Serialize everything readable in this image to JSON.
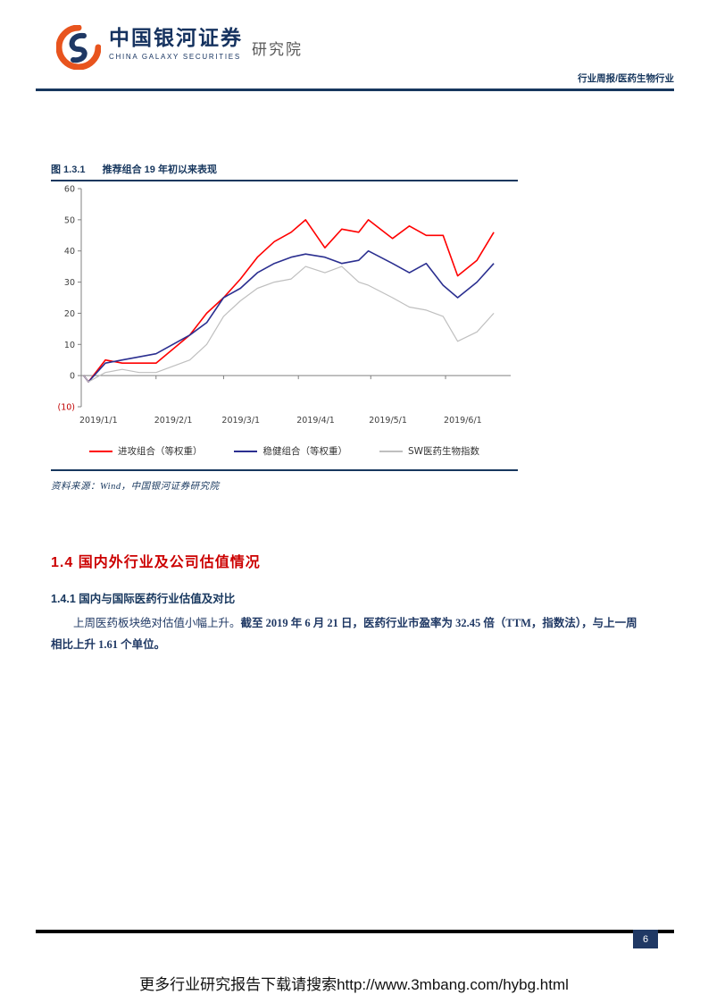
{
  "header": {
    "brand_cn": "中国银河证券",
    "brand_en": "CHINA GALAXY SECURITIES",
    "division": "研究院",
    "report_tag": "行业周报/医药生物行业"
  },
  "figure": {
    "caption_label": "图 1.3.1",
    "caption_title": "推荐组合 19 年初以来表现",
    "source": "资料来源：Wind，中国银河证券研究院"
  },
  "sections": {
    "h1": "1.4 国内外行业及公司估值情况",
    "h2": "1.4.1 国内与国际医药行业估值及对比",
    "para_normal": "上周医药板块绝对估值小幅上升。",
    "para_bold": "截至 2019 年 6 月 21 日，医药行业市盈率为 32.45 倍（TTM，指数法），与上一周相比上升 1.61 个单位。"
  },
  "footer": {
    "page_number": "6",
    "download_text": "更多行业研究报告下载请搜索http://www.3mbang.com/hybg.html"
  },
  "chart_data": {
    "type": "line",
    "title": "推荐组合 19 年初以来表现",
    "xlabel": "",
    "ylabel": "",
    "xlim": [
      "2019/1/1",
      "2019/6/28"
    ],
    "ylim": [
      -10,
      60
    ],
    "grid": false,
    "legend_position": "bottom",
    "x_ticks": [
      "2019/1/1",
      "2019/2/1",
      "2019/3/1",
      "2019/4/1",
      "2019/5/1",
      "2019/6/1"
    ],
    "y_ticks": [
      {
        "v": 60,
        "label": "60"
      },
      {
        "v": 50,
        "label": "50"
      },
      {
        "v": 40,
        "label": "40"
      },
      {
        "v": 30,
        "label": "30"
      },
      {
        "v": 20,
        "label": "20"
      },
      {
        "v": 10,
        "label": "10"
      },
      {
        "v": 0,
        "label": "0"
      },
      {
        "v": -10,
        "label": "(10)"
      }
    ],
    "x": [
      "2019/1/2",
      "2019/1/4",
      "2019/1/11",
      "2019/1/18",
      "2019/1/25",
      "2019/2/1",
      "2019/2/15",
      "2019/2/22",
      "2019/3/1",
      "2019/3/8",
      "2019/3/15",
      "2019/3/22",
      "2019/3/29",
      "2019/4/4",
      "2019/4/12",
      "2019/4/19",
      "2019/4/26",
      "2019/4/30",
      "2019/5/10",
      "2019/5/17",
      "2019/5/24",
      "2019/5/31",
      "2019/6/6",
      "2019/6/14",
      "2019/6/21"
    ],
    "series": [
      {
        "name": "进攻组合（等权重）",
        "color": "#FF0000",
        "values": [
          0,
          -2,
          5,
          4,
          4,
          4,
          13,
          20,
          25,
          31,
          38,
          43,
          46,
          50,
          41,
          47,
          46,
          50,
          44,
          48,
          45,
          45,
          32,
          37,
          46
        ]
      },
      {
        "name": "稳健组合（等权重）",
        "color": "#2B2F90",
        "values": [
          0,
          -2,
          4,
          5,
          6,
          7,
          13,
          17,
          25,
          28,
          33,
          36,
          38,
          39,
          38,
          36,
          37,
          40,
          36,
          33,
          36,
          29,
          25,
          30,
          36
        ]
      },
      {
        "name": "SW医药生物指数",
        "color": "#BFBFBF",
        "values": [
          0,
          -2,
          1,
          2,
          1,
          1,
          5,
          10,
          19,
          24,
          28,
          30,
          31,
          35,
          33,
          35,
          30,
          29,
          25,
          22,
          21,
          19,
          11,
          14,
          20
        ]
      }
    ]
  }
}
